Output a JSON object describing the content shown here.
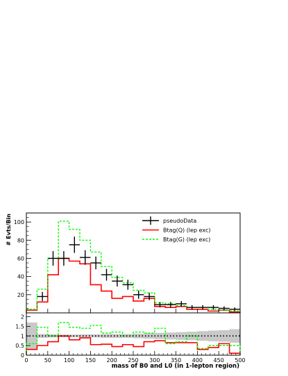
{
  "chart_data": [
    {
      "type": "histogram",
      "ylabel": "# Evts/Bin",
      "ylim": [
        0,
        110
      ],
      "yticks": [
        20,
        40,
        60,
        80,
        100
      ],
      "xlim": [
        0,
        500
      ],
      "bin_edges": [
        0,
        25,
        50,
        75,
        100,
        125,
        150,
        175,
        200,
        225,
        250,
        275,
        300,
        325,
        350,
        375,
        400,
        425,
        450,
        475,
        500
      ],
      "legend": {
        "placement": "top-right",
        "entries": [
          "pseudoData",
          "Btag(Q) (lep exc)",
          "Btag(G) (lep exc)"
        ]
      },
      "series": [
        {
          "name": "pseudoData",
          "style": "points-with-errors",
          "color": "#000000",
          "x": [
            37.5,
            62.5,
            87.5,
            112.5,
            137.5,
            162.5,
            187.5,
            212.5,
            237.5,
            262.5,
            287.5,
            312.5,
            337.5,
            362.5,
            387.5,
            412.5,
            437.5,
            462.5,
            487.5
          ],
          "y": [
            18,
            60,
            60,
            75,
            61,
            55,
            42,
            35,
            31,
            20,
            18,
            9,
            9,
            10,
            6,
            6,
            6,
            5,
            4
          ],
          "err": [
            5,
            8,
            8,
            9,
            8,
            7,
            6.5,
            6,
            5.5,
            4.5,
            4,
            3,
            3,
            3,
            2.5,
            2.5,
            2.5,
            2.2,
            2
          ]
        },
        {
          "name": "Btag(Q) (lep exc)",
          "style": "step",
          "color": "#ff0000",
          "values": [
            3,
            12,
            42,
            60,
            57,
            54,
            31,
            24,
            16,
            18,
            13,
            16,
            7,
            6,
            7,
            4,
            4,
            2,
            3,
            1
          ]
        },
        {
          "name": "Btag(G) (lep exc)",
          "style": "step-dashed",
          "color": "#00ff00",
          "values": [
            4,
            26,
            60,
            101,
            92,
            80,
            67,
            51,
            39,
            33,
            25,
            22,
            11,
            10,
            8,
            6,
            6,
            4,
            3,
            2
          ]
        }
      ]
    },
    {
      "type": "ratio",
      "xlabel": "mass of B0 and L0 (in 1-lepton region)",
      "ylim": [
        0,
        2.2
      ],
      "yticks": [
        0,
        0.5,
        1,
        1.5,
        2
      ],
      "yticklabels": [
        "0",
        "0.5",
        "1",
        "1.5",
        "2"
      ],
      "xlim": [
        0,
        500
      ],
      "xticks": [
        0,
        50,
        100,
        150,
        200,
        250,
        300,
        350,
        400,
        450,
        500
      ],
      "xticklabels": [
        "0",
        "50",
        "100",
        "150",
        "200",
        "250",
        "300",
        "350",
        "400",
        "450",
        "500"
      ],
      "reference_line": 1,
      "band_color": "#c8c8c8",
      "band_low": [
        0.3,
        0.9,
        0.92,
        0.93,
        0.93,
        0.92,
        0.92,
        0.9,
        0.9,
        0.9,
        0.88,
        0.86,
        0.84,
        0.82,
        0.8,
        0.78,
        0.75,
        0.72,
        0.7,
        0.65
      ],
      "band_high": [
        1.7,
        1.1,
        1.08,
        1.07,
        1.07,
        1.08,
        1.08,
        1.1,
        1.1,
        1.1,
        1.12,
        1.14,
        1.16,
        1.18,
        1.2,
        1.22,
        1.25,
        1.28,
        1.3,
        1.35
      ],
      "series": [
        {
          "name": "Btag(Q) (lep exc)",
          "style": "step",
          "color": "#ff0000",
          "values": [
            0.3,
            0.5,
            0.7,
            1.0,
            0.8,
            0.9,
            0.55,
            0.57,
            0.45,
            0.55,
            0.45,
            0.7,
            0.75,
            0.65,
            0.65,
            0.65,
            0.3,
            0.4,
            0.6,
            0.1
          ]
        },
        {
          "name": "Btag(G) (lep exc)",
          "style": "step-dashed",
          "color": "#00ff00",
          "values": [
            0.6,
            1.45,
            1.0,
            1.7,
            1.45,
            1.4,
            1.55,
            1.15,
            1.2,
            1.0,
            1.2,
            1.15,
            1.4,
            0.6,
            0.7,
            1.0,
            0.35,
            0.5,
            0.5,
            0.5
          ]
        }
      ]
    }
  ]
}
